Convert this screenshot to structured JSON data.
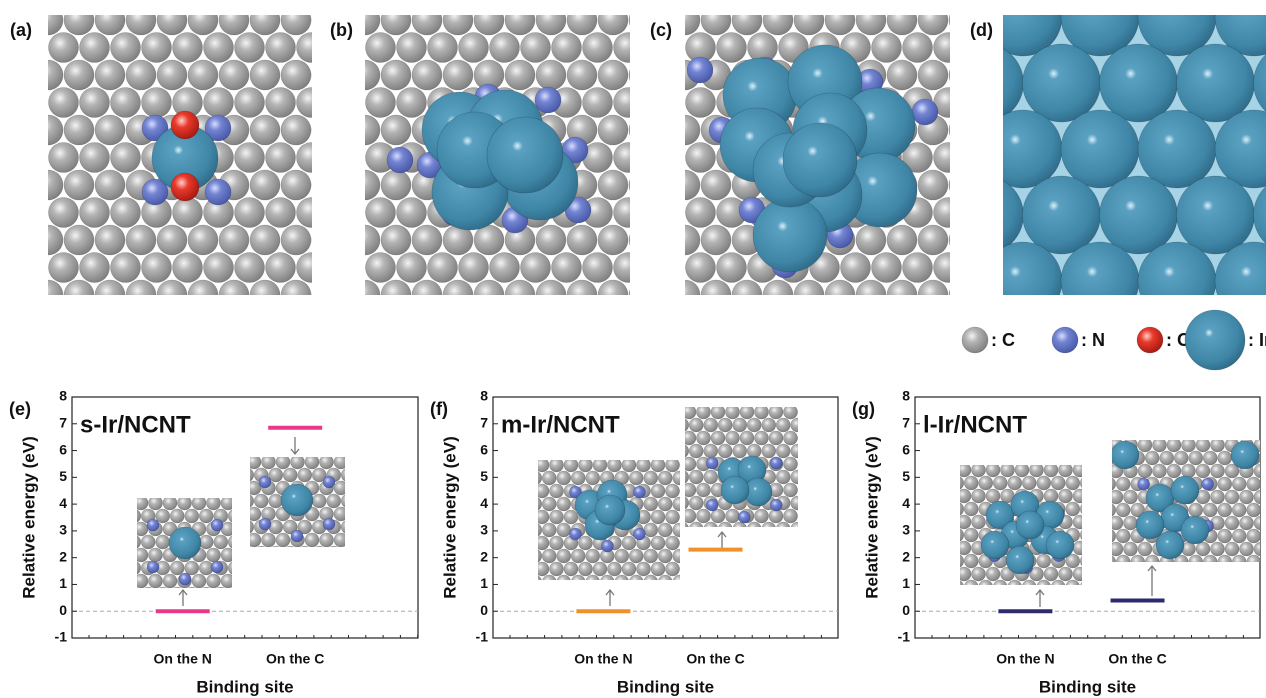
{
  "panels": [
    "(a)",
    "(b)",
    "(c)",
    "(d)"
  ],
  "legend": [
    ": C",
    ": N",
    ": O",
    ": Ir"
  ],
  "chart_data": [
    {
      "type": "level",
      "label": "(e)",
      "title": "s-Ir/NCNT",
      "color": "#e8388a",
      "xlabel": "Binding site",
      "ylabel": "Relative energy (eV)",
      "categories": [
        "On the N",
        "On the C"
      ],
      "values": [
        0,
        6.85
      ],
      "ylim": [
        -1,
        8
      ],
      "yticks": [
        -1,
        0,
        1,
        2,
        3,
        4,
        5,
        6,
        7,
        8
      ]
    },
    {
      "type": "level",
      "label": "(f)",
      "title": "m-Ir/NCNT",
      "color": "#f0902a",
      "xlabel": "Binding site",
      "ylabel": "Relative energy (eV)",
      "categories": [
        "On the N",
        "On the C"
      ],
      "values": [
        0,
        2.3
      ],
      "ylim": [
        -1,
        8
      ],
      "yticks": [
        -1,
        0,
        1,
        2,
        3,
        4,
        5,
        6,
        7,
        8
      ]
    },
    {
      "type": "level",
      "label": "(g)",
      "title": "l-Ir/NCNT",
      "color": "#2e2a6e",
      "xlabel": "Binding site",
      "ylabel": "Relative energy (eV)",
      "categories": [
        "On the N",
        "On the C"
      ],
      "values": [
        0,
        0.4
      ],
      "ylim": [
        -1,
        8
      ],
      "yticks": [
        -1,
        0,
        1,
        2,
        3,
        4,
        5,
        6,
        7,
        8
      ]
    }
  ]
}
